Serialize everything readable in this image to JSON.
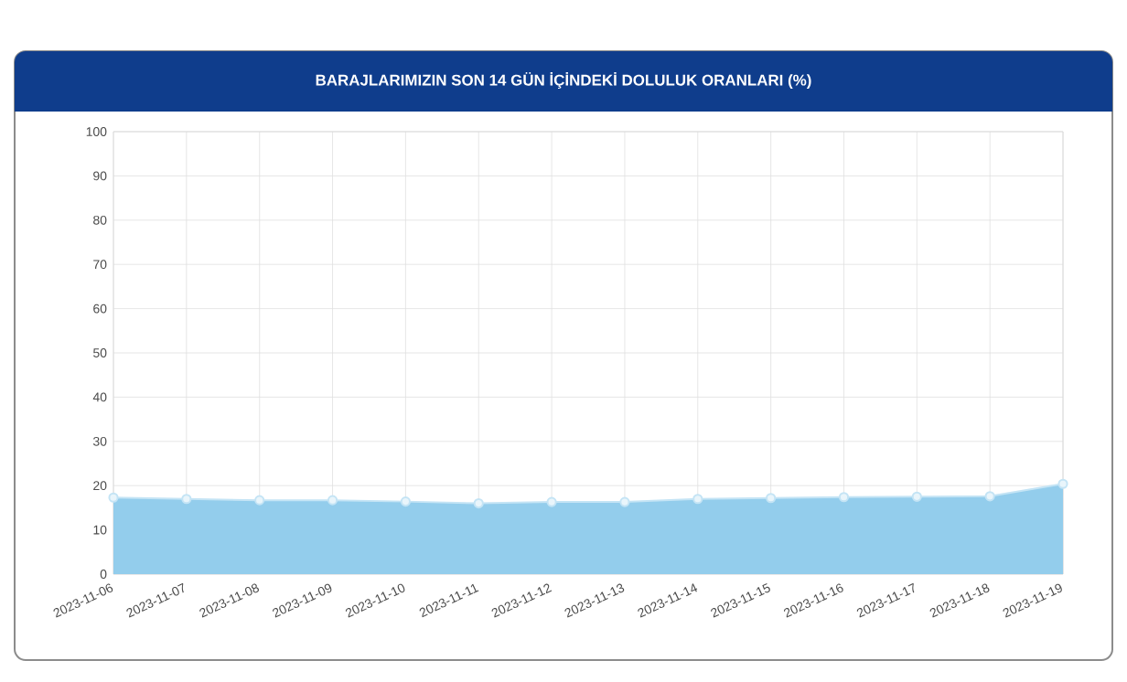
{
  "chart_data": {
    "type": "area",
    "title": "BARAJLARIMIZIN SON 14 GÜN İÇİNDEKİ DOLULUK ORANLARI (%)",
    "categories": [
      "2023-11-06",
      "2023-11-07",
      "2023-11-08",
      "2023-11-09",
      "2023-11-10",
      "2023-11-11",
      "2023-11-12",
      "2023-11-13",
      "2023-11-14",
      "2023-11-15",
      "2023-11-16",
      "2023-11-17",
      "2023-11-18",
      "2023-11-19"
    ],
    "values": [
      17.3,
      17.0,
      16.7,
      16.7,
      16.4,
      16.0,
      16.3,
      16.3,
      17.0,
      17.2,
      17.4,
      17.5,
      17.6,
      20.4
    ],
    "color": "#93cdec",
    "ylim": [
      0,
      100
    ],
    "yticks": [
      0,
      10,
      20,
      30,
      40,
      50,
      60,
      70,
      80,
      90,
      100
    ],
    "grid": true,
    "marker": "circle"
  }
}
